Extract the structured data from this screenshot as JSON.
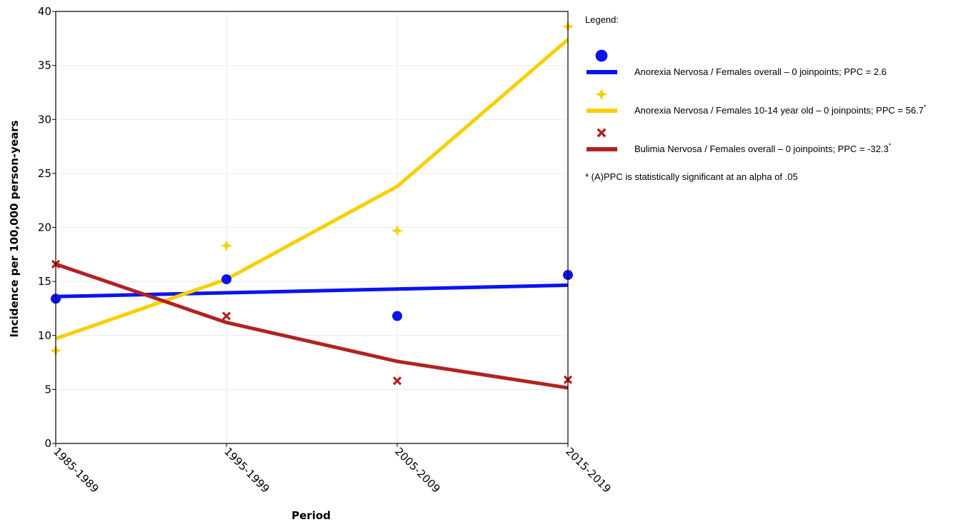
{
  "chart_data": {
    "type": "line",
    "categories": [
      "1985-1989",
      "1995-1999",
      "2005-2009",
      "2015-2019"
    ],
    "xlabel": "Period",
    "ylabel": "Incidence per 100,000 person-years",
    "ylim": [
      0,
      40
    ],
    "yticks": [
      0,
      5,
      10,
      15,
      20,
      25,
      30,
      35,
      40
    ],
    "grid": true,
    "legend_position": "right",
    "legend_title": "Legend:",
    "footnote": "* (A)PPC is statistically significant at an alpha of .05",
    "series": [
      {
        "name": "Anorexia Nervosa / Females overall – 0 joinpoints; PPC = 2.6",
        "label_main": "Anorexia Nervosa / Females overall – 0 joinpoints; PPC = 2.6",
        "label_sup": "",
        "color": "#0a14f0",
        "marker": "circle",
        "observed": [
          13.4,
          15.2,
          11.8,
          15.6
        ],
        "fitted": [
          13.6,
          13.95,
          14.3,
          14.65
        ]
      },
      {
        "name": "Anorexia Nervosa / Females 10-14 year old – 0 joinpoints; PPC = 56.7*",
        "label_main": "Anorexia Nervosa / Females 10-14 year old – 0 joinpoints; PPC = 56.7",
        "label_sup": "*",
        "color": "#f7d000",
        "marker": "star",
        "observed": [
          8.6,
          18.3,
          19.7,
          38.6
        ],
        "fitted": [
          9.7,
          15.2,
          23.8,
          37.4
        ]
      },
      {
        "name": "Bulimia Nervosa / Females overall – 0 joinpoints; PPC = -32.3*",
        "label_main": "Bulimia Nervosa / Females overall – 0 joinpoints; PPC = -32.3",
        "label_sup": "*",
        "color": "#b22222",
        "marker": "x",
        "observed": [
          16.6,
          11.8,
          5.8,
          5.9
        ],
        "fitted": [
          16.6,
          11.2,
          7.6,
          5.15
        ]
      }
    ]
  }
}
